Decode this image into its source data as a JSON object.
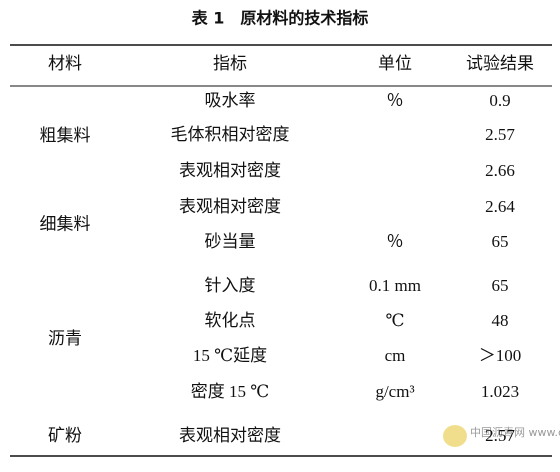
{
  "title": "表 1　原材料的技术指标",
  "table": {
    "header": [
      "材料",
      "指标",
      "单位",
      "试验结果"
    ],
    "groups": [
      {
        "material": "粗集料",
        "rows": [
          [
            "吸水率",
            "％",
            "0.9"
          ],
          [
            "毛体积相对密度",
            null,
            "2.57"
          ],
          [
            "表观相对密度",
            null,
            "2.66"
          ]
        ]
      },
      {
        "material": "细集料",
        "rows": [
          [
            "表观相对密度",
            null,
            "2.64"
          ],
          [
            "砂当量",
            "％",
            "65"
          ]
        ]
      },
      {
        "material": "沥青",
        "rows": [
          [
            "针入度",
            "0.1 mm",
            "65"
          ],
          [
            "软化点",
            "℃",
            "48"
          ],
          [
            "15 ℃延度",
            "cm",
            "＞100"
          ],
          [
            "密度 15 ℃",
            "g/cm³",
            "1.023"
          ]
        ]
      },
      {
        "material": "矿粉",
        "rows": [
          [
            "表观相对密度",
            null,
            "2.57"
          ]
        ]
      }
    ]
  },
  "watermark": "中国沥青网 www.chinaasphalt.com"
}
